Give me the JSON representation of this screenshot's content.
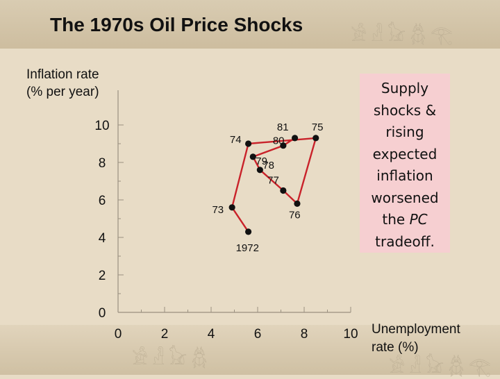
{
  "title": "The 1970s Oil Price Shocks",
  "y_axis_title": "Inflation rate\n(% per year)",
  "x_axis_title": "Unemployment\nrate (%)",
  "annotation": {
    "before_italic": "Supply shocks & rising expected inflation worsened the ",
    "italic": "PC",
    "after_italic": " tradeoff."
  },
  "decor": {
    "top_glyphs": "𓀀𓁐𓃠𓆣𓂀",
    "bottom_left_glyphs": "𓀀𓁐𓃠𓆣",
    "bottom_right_glyphs": "𓀀𓁐𓃠𓆣𓂀"
  },
  "colors": {
    "line": "#c9222a",
    "marker": "#111111",
    "axis": "#9a9080",
    "annotation_bg": "#f6cfd1"
  },
  "chart_data": {
    "type": "line",
    "xlabel": "Unemployment rate (%)",
    "ylabel": "Inflation rate (% per year)",
    "xlim": [
      0,
      10
    ],
    "ylim": [
      0,
      10
    ],
    "x_ticks": [
      0,
      2,
      4,
      6,
      8,
      10
    ],
    "y_ticks": [
      0,
      2,
      4,
      6,
      8,
      10
    ],
    "grid": false,
    "legend": "none",
    "series": [
      {
        "points": [
          {
            "label": "1972",
            "x": 5.6,
            "y": 4.3
          },
          {
            "label": "73",
            "x": 4.9,
            "y": 5.6
          },
          {
            "label": "74",
            "x": 5.6,
            "y": 9.0
          },
          {
            "label": "75",
            "x": 8.5,
            "y": 9.3
          },
          {
            "label": "76",
            "x": 7.7,
            "y": 5.8
          },
          {
            "label": "77",
            "x": 7.1,
            "y": 6.5
          },
          {
            "label": "78",
            "x": 6.1,
            "y": 7.6
          },
          {
            "label": "79",
            "x": 5.8,
            "y": 8.3
          },
          {
            "label": "80",
            "x": 7.1,
            "y": 8.9
          },
          {
            "label": "81",
            "x": 7.6,
            "y": 9.3
          }
        ]
      }
    ]
  }
}
